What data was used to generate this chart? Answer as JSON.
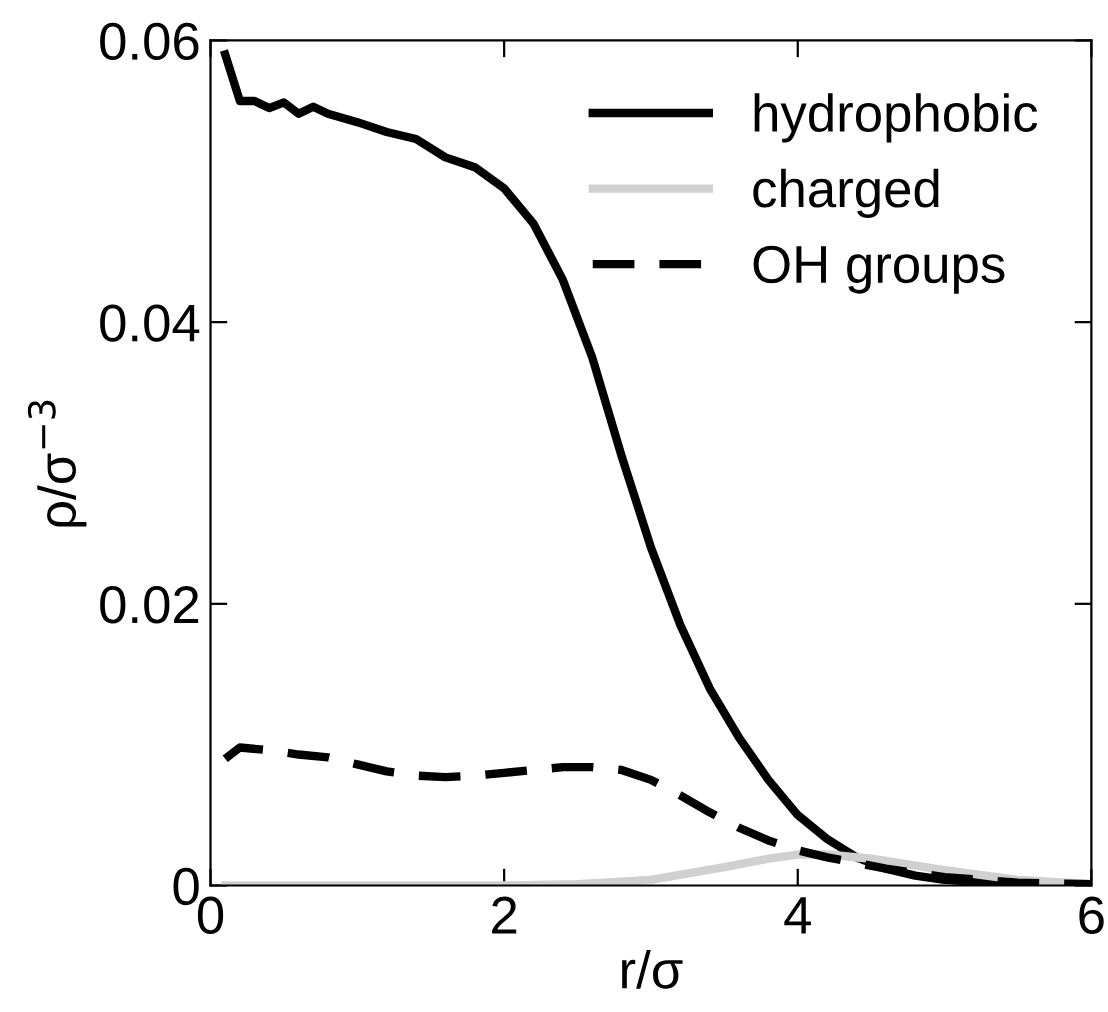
{
  "chart_data": {
    "type": "line",
    "xlabel": "r/σ",
    "ylabel": "ρ/σ$^{−3}$",
    "xlim": [
      0,
      6
    ],
    "ylim": [
      0,
      0.06
    ],
    "xticks": [
      0,
      2,
      4,
      6
    ],
    "yticks": [
      0,
      0.02,
      0.04,
      0.06
    ],
    "legend": "top right",
    "grid": false,
    "series": [
      {
        "name": "hydrophobic",
        "color": "#000000",
        "line_style": "solid",
        "x": [
          0.1,
          0.2,
          0.3,
          0.4,
          0.5,
          0.6,
          0.7,
          0.8,
          1.0,
          1.2,
          1.4,
          1.6,
          1.8,
          2.0,
          2.2,
          2.4,
          2.6,
          2.8,
          3.0,
          3.2,
          3.4,
          3.6,
          3.8,
          4.0,
          4.2,
          4.4,
          4.6,
          4.8,
          5.0,
          5.5,
          6.0
        ],
        "values": [
          0.059,
          0.0557,
          0.0557,
          0.0552,
          0.0556,
          0.0548,
          0.0553,
          0.0548,
          0.0542,
          0.0535,
          0.053,
          0.0517,
          0.051,
          0.0495,
          0.047,
          0.043,
          0.0375,
          0.0305,
          0.024,
          0.0185,
          0.014,
          0.0105,
          0.0075,
          0.005,
          0.0033,
          0.002,
          0.0012,
          0.0007,
          0.0004,
          0.0001,
          0.0
        ]
      },
      {
        "name": "charged",
        "color": "#d0d0d0",
        "line_style": "solid",
        "x": [
          0.1,
          1.0,
          2.0,
          2.5,
          3.0,
          3.5,
          3.8,
          4.0,
          4.2,
          4.5,
          5.0,
          5.5,
          6.0
        ],
        "values": [
          0.0,
          0.0,
          0.0,
          0.0001,
          0.0004,
          0.0013,
          0.0019,
          0.0022,
          0.0022,
          0.0019,
          0.0011,
          0.0004,
          0.0001
        ]
      },
      {
        "name": "OH groups",
        "color": "#000000",
        "line_style": "dashed",
        "x": [
          0.1,
          0.2,
          0.4,
          0.6,
          0.8,
          1.0,
          1.2,
          1.4,
          1.6,
          1.8,
          2.0,
          2.2,
          2.4,
          2.6,
          2.8,
          3.0,
          3.2,
          3.4,
          3.6,
          3.8,
          4.0,
          4.2,
          4.4,
          4.6,
          4.8,
          5.0,
          5.5,
          6.0
        ],
        "values": [
          0.009,
          0.0098,
          0.0096,
          0.0093,
          0.0091,
          0.0086,
          0.0081,
          0.0078,
          0.0077,
          0.0078,
          0.008,
          0.0082,
          0.0084,
          0.0084,
          0.0082,
          0.0075,
          0.0064,
          0.0052,
          0.0041,
          0.0032,
          0.0025,
          0.002,
          0.0016,
          0.0012,
          0.0009,
          0.0006,
          0.0002,
          0.0001
        ]
      }
    ]
  }
}
